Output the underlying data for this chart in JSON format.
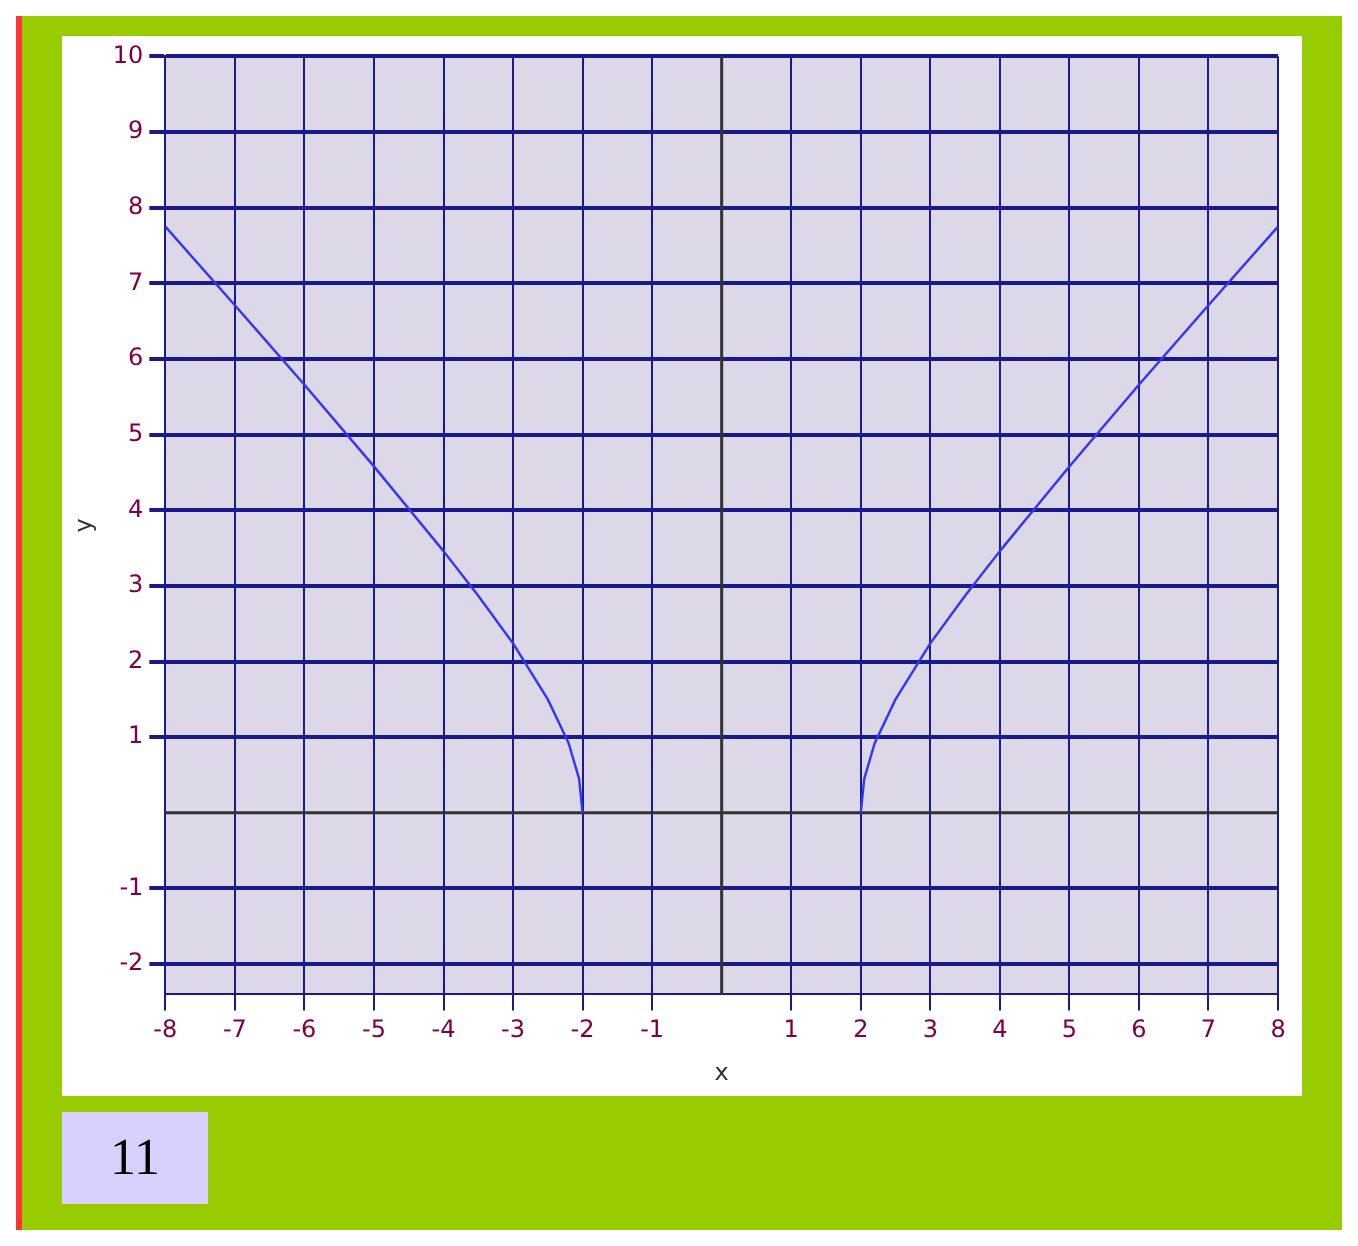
{
  "chart_data": {
    "type": "line",
    "xlabel": "x",
    "ylabel": "y",
    "annotations": [
      "11"
    ],
    "grid": true,
    "marker": "none",
    "line_style": "solid",
    "xlim": [
      -8,
      8
    ],
    "xticks": [
      -8,
      -7,
      -6,
      -5,
      -4,
      -3,
      -2,
      -1,
      1,
      2,
      3,
      4,
      5,
      6,
      7,
      8
    ],
    "ylim": [
      -2.4,
      10
    ],
    "yticks": [
      -2,
      -1,
      1,
      2,
      3,
      4,
      5,
      6,
      7,
      8,
      9,
      10
    ],
    "series": [
      {
        "color": "#3333ff",
        "x": [
          -8,
          -7,
          -6,
          -5,
          -4,
          -3.5,
          -3,
          -2.5,
          -2.2,
          -2.05,
          -2
        ],
        "values": [
          7.75,
          6.71,
          5.66,
          4.58,
          3.46,
          2.87,
          2.24,
          1.5,
          0.92,
          0.45,
          0
        ]
      },
      {
        "color": "#3333ff",
        "x": [
          2,
          2.05,
          2.2,
          2.5,
          3,
          3.5,
          4,
          5,
          6,
          7,
          8
        ],
        "values": [
          0,
          0.45,
          0.92,
          1.5,
          2.24,
          2.87,
          3.46,
          4.58,
          5.66,
          6.71,
          7.75
        ]
      }
    ]
  }
}
